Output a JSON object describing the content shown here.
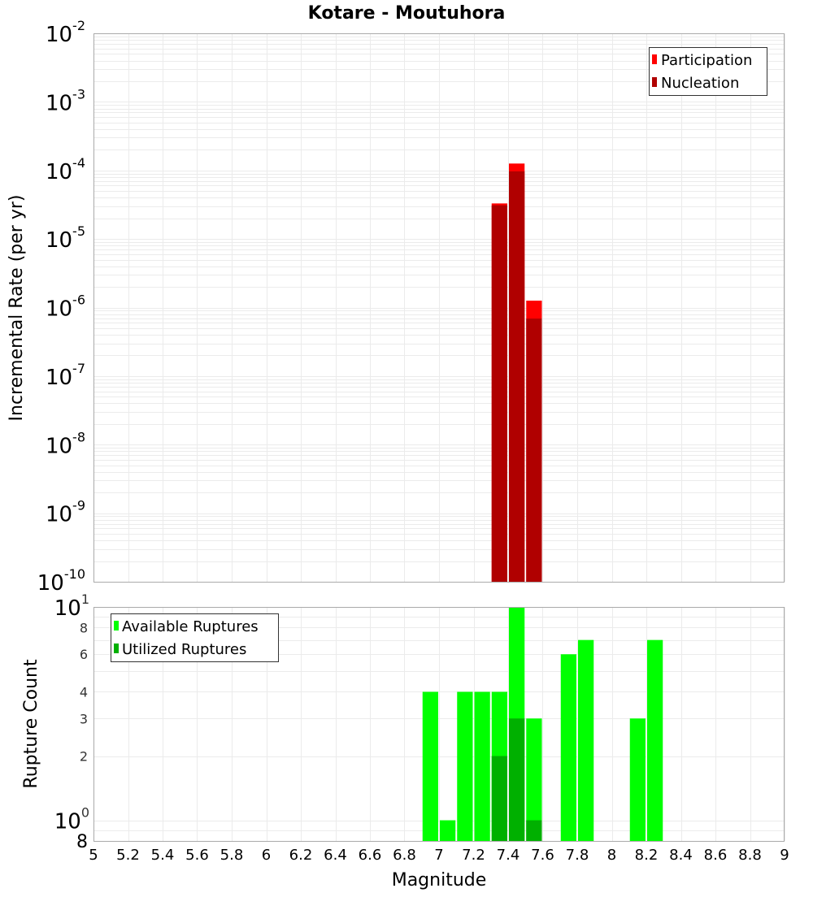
{
  "figure": {
    "title": "Kotare - Moutuhora",
    "xlabel": "Magnitude"
  },
  "colors": {
    "participation": "#ff0000",
    "nucleation": "#b00000",
    "available": "#00ff00",
    "utilized": "#00b000",
    "grid": "#ebebeb",
    "frame": "#aaaaaa",
    "legend_border": "#333333"
  },
  "chart_data": [
    {
      "type": "bar",
      "title": "Kotare - Moutuhora",
      "xlabel": "Magnitude",
      "ylabel": "Incremental Rate (per yr)",
      "yscale": "log",
      "xlim": [
        5,
        9
      ],
      "ylim": [
        1e-10,
        0.01
      ],
      "grid": true,
      "legend_position": "top-right",
      "x_ticks": [
        "5",
        "5.2",
        "5.4",
        "5.6",
        "5.8",
        "6",
        "6.2",
        "6.4",
        "6.6",
        "6.8",
        "7",
        "7.2",
        "7.4",
        "7.6",
        "7.8",
        "8",
        "8.2",
        "8.4",
        "8.6",
        "8.8",
        "9"
      ],
      "y_ticks": [
        {
          "base": "10",
          "exp": "-2"
        },
        {
          "base": "10",
          "exp": "-3"
        },
        {
          "base": "10",
          "exp": "-4"
        },
        {
          "base": "10",
          "exp": "-5"
        },
        {
          "base": "10",
          "exp": "-6"
        },
        {
          "base": "10",
          "exp": "-7"
        },
        {
          "base": "10",
          "exp": "-8"
        },
        {
          "base": "10",
          "exp": "-9"
        },
        {
          "base": "10",
          "exp": "-10"
        }
      ],
      "x": [
        7.35,
        7.45,
        7.55
      ],
      "series": [
        {
          "name": "Participation",
          "color": "#ff0000",
          "values": [
            3.3e-05,
            0.000126,
            1.26e-06
          ]
        },
        {
          "name": "Nucleation",
          "color": "#b00000",
          "values": [
            3.1e-05,
            9.7e-05,
            6.9e-07
          ]
        }
      ]
    },
    {
      "type": "bar",
      "xlabel": "Magnitude",
      "ylabel": "Rupture Count",
      "yscale": "log",
      "xlim": [
        5,
        9
      ],
      "ylim": [
        0.8,
        10
      ],
      "grid": true,
      "legend_position": "top-left",
      "y_ticks": [
        {
          "value": 10,
          "label": "10",
          "exp": "1",
          "major": true
        },
        {
          "value": 8,
          "label": "8"
        },
        {
          "value": 6,
          "label": "6"
        },
        {
          "value": 4,
          "label": "4"
        },
        {
          "value": 3,
          "label": "3"
        },
        {
          "value": 2,
          "label": "2"
        },
        {
          "value": 1,
          "label": "10",
          "exp": "0",
          "major": true
        },
        {
          "value": 0.8,
          "label": "8",
          "major_small": true
        }
      ],
      "x": [
        6.95,
        7.05,
        7.15,
        7.25,
        7.35,
        7.45,
        7.55,
        7.75,
        7.85,
        8.15,
        8.25
      ],
      "series": [
        {
          "name": "Available Ruptures",
          "color": "#00ff00",
          "values": [
            4,
            1,
            4,
            4,
            4,
            10,
            3,
            6,
            7,
            3,
            7
          ]
        },
        {
          "name": "Utilized Ruptures",
          "color": "#00b000",
          "values": [
            0,
            0,
            0,
            0,
            2,
            3,
            1,
            0,
            0,
            0,
            0
          ]
        }
      ]
    }
  ]
}
